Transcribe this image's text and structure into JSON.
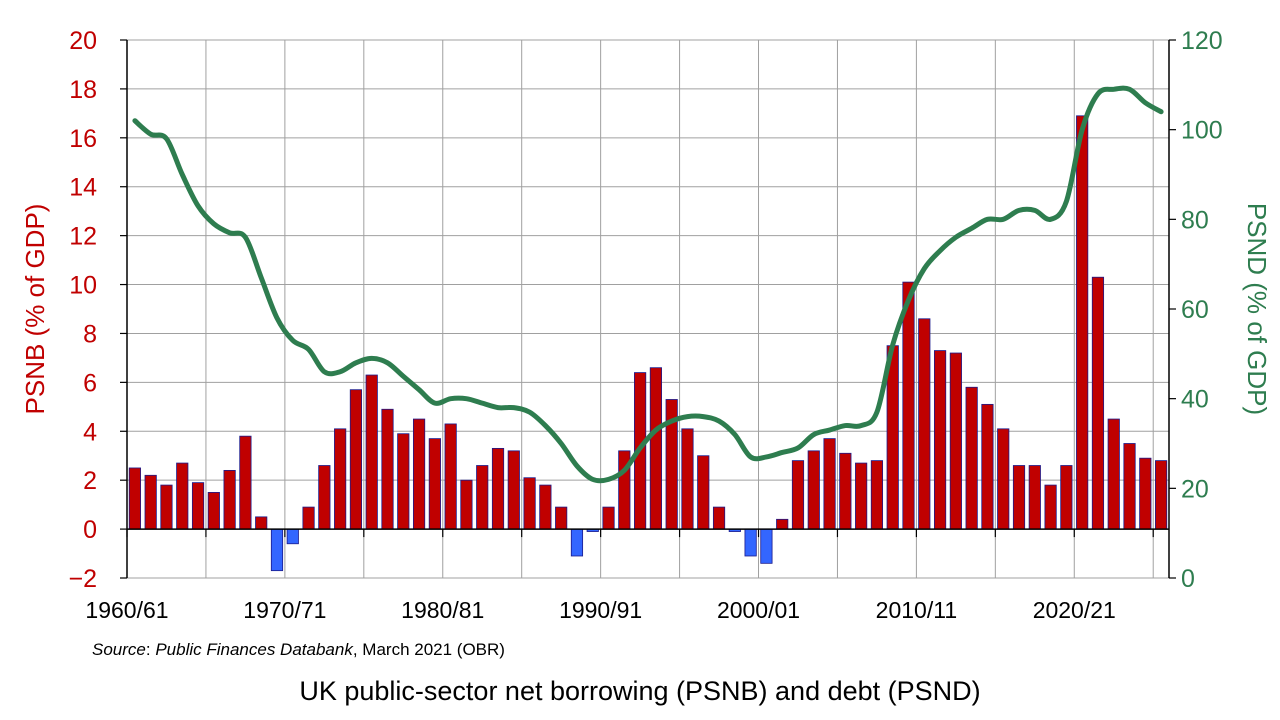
{
  "chart_data": {
    "type": "bar",
    "title": "UK public-sector net borrowing (PSNB) and debt (PSND)",
    "source": {
      "prefix": "Source",
      "sep": ": ",
      "publication": "Public Finances Databank",
      "rest": ", March 2021 (OBR)"
    },
    "ylabel": "PSNB (% of GDP)",
    "ylabel_right": "PSND (% of GDP)",
    "ylim": [
      -2,
      20
    ],
    "ylim_right": [
      0,
      120
    ],
    "yticks": [
      -2,
      0,
      2,
      4,
      6,
      8,
      10,
      12,
      14,
      16,
      18,
      20
    ],
    "ytick_labels": [
      "−2",
      "0",
      "2",
      "4",
      "6",
      "8",
      "10",
      "12",
      "14",
      "16",
      "18",
      "20"
    ],
    "yticks_right": [
      0,
      20,
      40,
      60,
      80,
      100,
      120
    ],
    "xtick_labels": [
      "1960/61",
      "1970/71",
      "1980/81",
      "1990/91",
      "2000/01",
      "2010/11",
      "2020/21"
    ],
    "grid": true,
    "colors": {
      "positive_bar": "#c00000",
      "negative_bar": "#3366ff",
      "bar_edge": "#1a1a8c",
      "debt_line": "#2e7d4f",
      "grid": "#a0a0a0"
    },
    "series": [
      {
        "name": "PSNB (% of GDP)",
        "type": "bar",
        "axis": "left",
        "values": [
          2.5,
          2.2,
          1.8,
          2.7,
          1.9,
          1.5,
          2.4,
          3.8,
          0.5,
          -1.7,
          -0.6,
          0.9,
          2.6,
          4.1,
          5.7,
          6.3,
          4.9,
          3.9,
          4.5,
          3.7,
          4.3,
          2.0,
          2.6,
          3.3,
          3.2,
          2.1,
          1.8,
          0.9,
          -1.1,
          -0.1,
          0.9,
          3.2,
          6.4,
          6.6,
          5.3,
          4.1,
          3.0,
          0.9,
          -0.1,
          -1.1,
          -1.4,
          0.4,
          2.8,
          3.2,
          3.7,
          3.1,
          2.7,
          2.8,
          7.5,
          10.1,
          8.6,
          7.3,
          7.2,
          5.8,
          5.1,
          4.1,
          2.6,
          2.6,
          1.8,
          2.6,
          16.9,
          10.3,
          4.5,
          3.5,
          2.9,
          2.8
        ]
      },
      {
        "name": "PSND (% of GDP)",
        "type": "line",
        "axis": "right",
        "values": [
          102,
          99,
          98,
          90,
          83,
          79,
          77,
          76,
          67,
          58,
          53,
          51,
          46,
          46,
          48,
          49,
          48,
          45,
          42,
          39,
          40,
          40,
          39,
          38,
          38,
          37,
          34,
          30,
          25,
          22,
          22,
          24,
          29,
          33,
          35,
          36,
          36,
          35,
          32,
          27,
          27,
          28,
          29,
          32,
          33,
          34,
          34,
          37,
          52,
          62,
          69,
          73,
          76,
          78,
          80,
          80,
          82,
          82,
          80,
          84,
          100,
          108,
          109,
          109,
          106,
          104
        ]
      }
    ]
  }
}
